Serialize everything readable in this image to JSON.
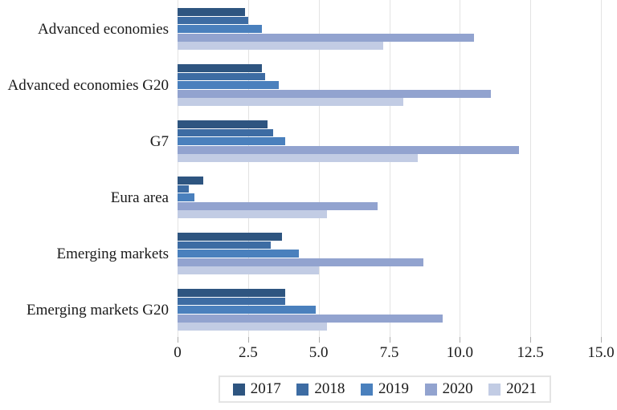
{
  "chart_data": {
    "type": "bar",
    "orientation": "horizontal",
    "title": "",
    "xlabel": "",
    "ylabel": "",
    "xlim": [
      0,
      15
    ],
    "grid": true,
    "legend_position": "bottom",
    "categories": [
      "Advanced economies",
      "Advanced economies G20",
      "G7",
      "Eura area",
      "Emerging markets",
      "Emerging markets G20"
    ],
    "series": [
      {
        "name": "2017",
        "color": "#2E5580",
        "values": [
          2.4,
          3.0,
          3.2,
          0.9,
          3.7,
          3.8
        ]
      },
      {
        "name": "2018",
        "color": "#3D6CA3",
        "values": [
          2.5,
          3.1,
          3.4,
          0.4,
          3.3,
          3.8
        ]
      },
      {
        "name": "2019",
        "color": "#4A80BD",
        "values": [
          3.0,
          3.6,
          3.8,
          0.6,
          4.3,
          4.9
        ]
      },
      {
        "name": "2020",
        "color": "#92A3CF",
        "values": [
          10.5,
          11.1,
          12.1,
          7.1,
          8.7,
          9.4
        ]
      },
      {
        "name": "2021",
        "color": "#C2CCE4",
        "values": [
          7.3,
          8.0,
          8.5,
          5.3,
          5.0,
          5.3
        ]
      }
    ],
    "x_ticks": [
      "0",
      "2.5",
      "5.0",
      "7.5",
      "10.0",
      "12.5",
      "15.0"
    ],
    "x_tick_values": [
      0,
      2.5,
      5.0,
      7.5,
      10.0,
      12.5,
      15.0
    ],
    "colors": {
      "gridline": "#e3e3e3",
      "tick": "#ababab",
      "text": "#1a1a1a",
      "legend_border": "#e4e4e4"
    }
  }
}
